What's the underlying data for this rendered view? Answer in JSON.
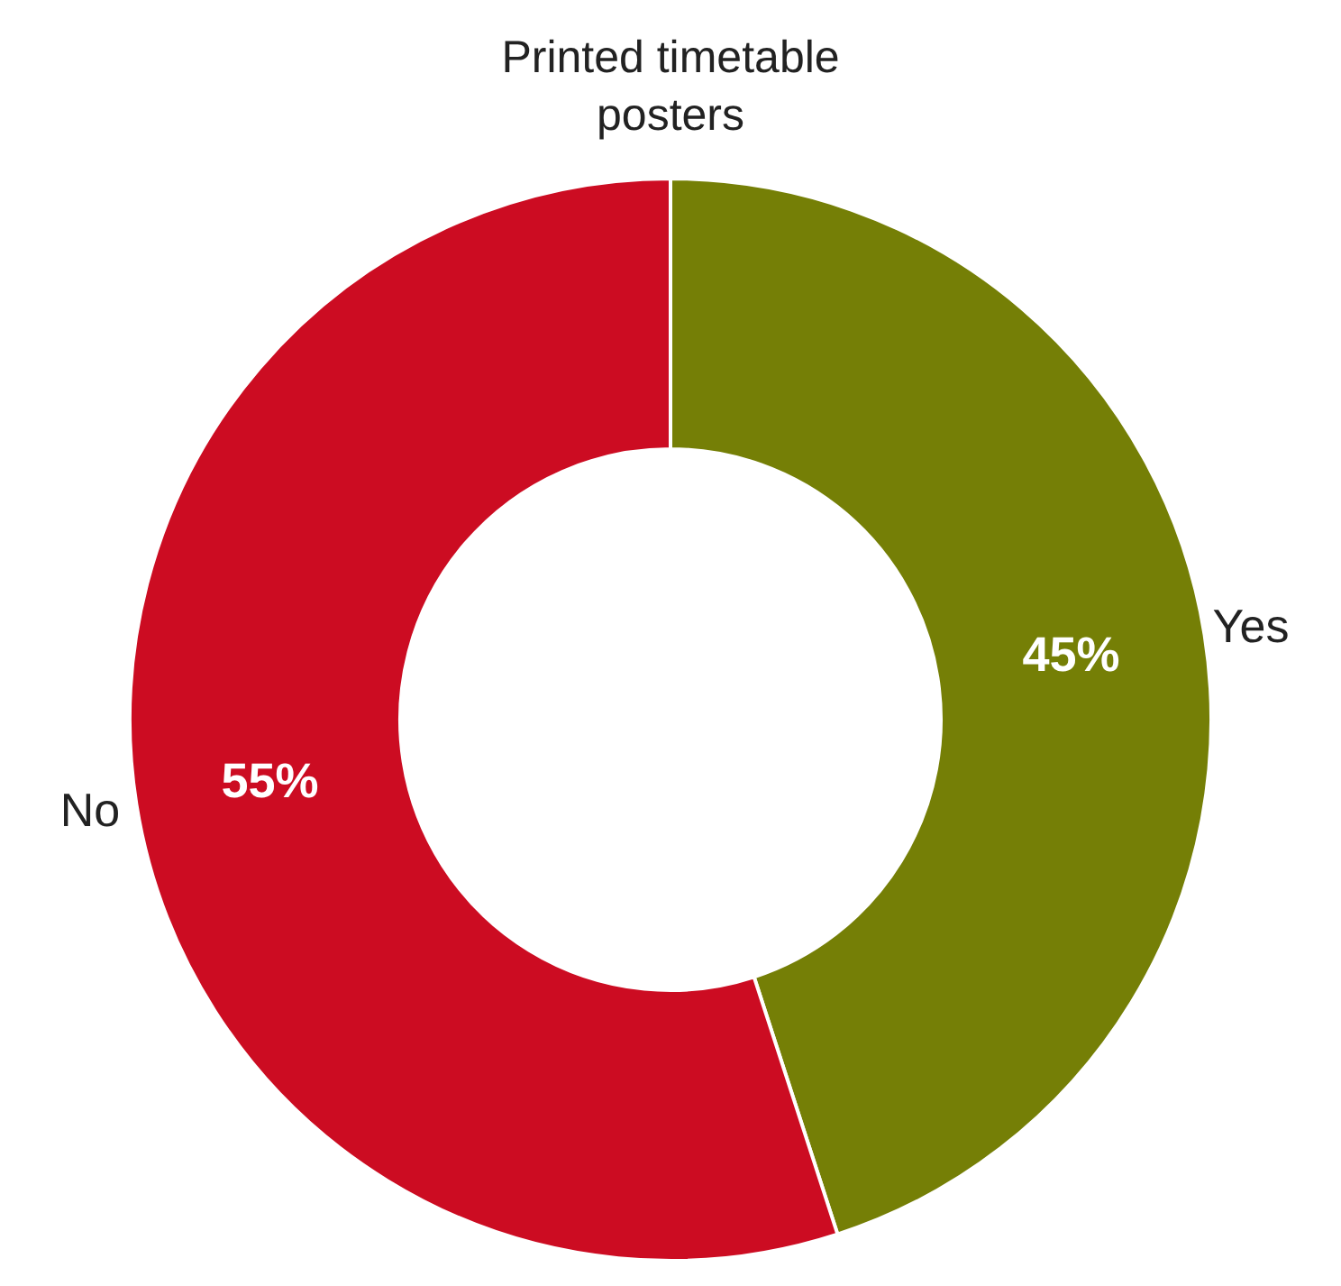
{
  "chart_data": {
    "type": "donut",
    "title": "Printed timetable posters",
    "categories": [
      "Yes",
      "No"
    ],
    "values": [
      45,
      55
    ],
    "colors": [
      "#757f06",
      "#cc0c22"
    ],
    "value_labels": [
      "45%",
      "55%"
    ]
  }
}
